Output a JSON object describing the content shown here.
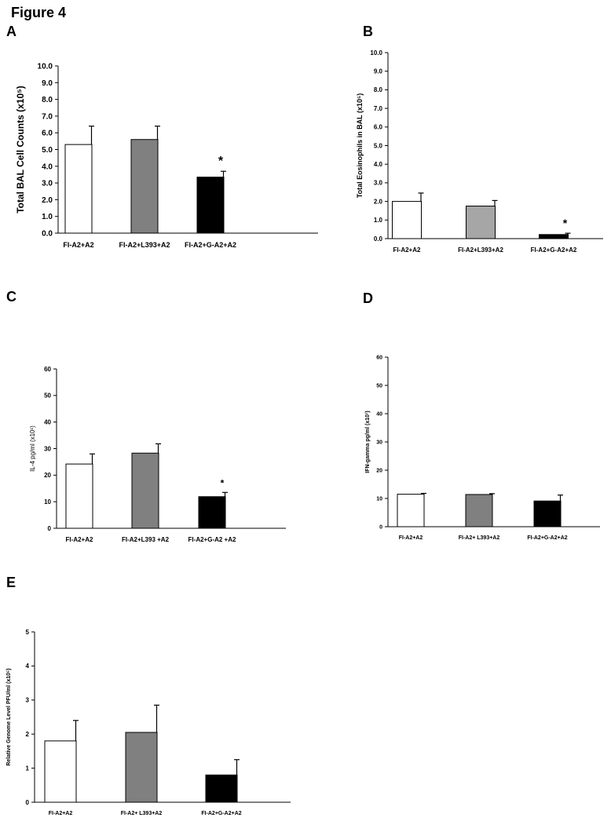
{
  "figure_title": "Figure 4",
  "colors": {
    "axis": "#000000",
    "error": "#000000"
  },
  "chart_data": [
    {
      "panel": "A",
      "type": "bar",
      "categories": [
        "FI-A2+A2",
        "FI-A2+L393+A2",
        "FI-A2+G-A2+A2"
      ],
      "values": [
        5.3,
        5.6,
        3.35
      ],
      "errors": [
        1.1,
        0.8,
        0.35
      ],
      "colors": [
        "#ffffff",
        "#808080",
        "#000000"
      ],
      "annotations": [
        "",
        "",
        "*"
      ],
      "ylabel": "Total BAL Cell Counts (x10⁵)",
      "ylim": [
        0,
        10
      ],
      "yticks": [
        "0.0",
        "1.0",
        "2.0",
        "3.0",
        "4.0",
        "5.0",
        "6.0",
        "7.0",
        "8.0",
        "9.0",
        "10.0"
      ],
      "grid": false
    },
    {
      "panel": "B",
      "type": "bar",
      "categories": [
        "FI-A2+A2",
        "FI-A2+L393+A2",
        "FI-A2+G-A2+A2"
      ],
      "values": [
        2.0,
        1.75,
        0.22
      ],
      "errors": [
        0.45,
        0.3,
        0.07
      ],
      "colors": [
        "#ffffff",
        "#a6a6a6",
        "#000000"
      ],
      "annotations": [
        "",
        "",
        "*"
      ],
      "ylabel": "Total Eosinophils in  BAL (x10⁵)",
      "ylim": [
        0,
        10
      ],
      "yticks": [
        "0.0",
        "1.0",
        "2.0",
        "3.0",
        "4.0",
        "5.0",
        "6.0",
        "7.0",
        "8.0",
        "9.0",
        "10.0"
      ],
      "grid": false
    },
    {
      "panel": "C",
      "type": "bar",
      "categories": [
        "FI-A2+A2",
        "FI-A2+L393 +A2",
        "FI-A2+G-A2 +A2"
      ],
      "values": [
        24.2,
        28.3,
        11.9
      ],
      "errors": [
        3.8,
        3.5,
        1.6
      ],
      "colors": [
        "#ffffff",
        "#808080",
        "#000000"
      ],
      "annotations": [
        "",
        "",
        "*"
      ],
      "ylabel": "IL-4 pg/ml (x10¹)",
      "ylim": [
        0,
        60
      ],
      "yticks": [
        "0",
        "10",
        "20",
        "30",
        "40",
        "50",
        "60"
      ],
      "grid": false
    },
    {
      "panel": "D",
      "type": "bar",
      "categories": [
        "FI-A2+A2",
        "FI-A2+ L393+A2",
        "FI-A2+G-A2+A2"
      ],
      "values": [
        11.5,
        11.4,
        9.1
      ],
      "errors": [
        0.3,
        0.3,
        2.1
      ],
      "colors": [
        "#ffffff",
        "#808080",
        "#000000"
      ],
      "annotations": [
        "",
        "",
        ""
      ],
      "ylabel": "IFN-gamma pg/ml (x10¹)",
      "ylim": [
        0,
        60
      ],
      "yticks": [
        "0",
        "10",
        "20",
        "30",
        "40",
        "50",
        "60"
      ],
      "grid": false
    },
    {
      "panel": "E",
      "type": "bar",
      "categories": [
        "FI-A2+A2",
        "FI-A2+ L393+A2",
        "FI-A2+G-A2+A2"
      ],
      "values": [
        1.8,
        2.05,
        0.8
      ],
      "errors": [
        0.6,
        0.8,
        0.45
      ],
      "colors": [
        "#ffffff",
        "#808080",
        "#000000"
      ],
      "annotations": [
        "",
        "",
        ""
      ],
      "ylabel": "Relative Genome Level PFU/ml (x10⁵)",
      "ylim": [
        0,
        5
      ],
      "yticks": [
        "0",
        "1",
        "2",
        "3",
        "4",
        "5"
      ],
      "grid": false
    }
  ]
}
